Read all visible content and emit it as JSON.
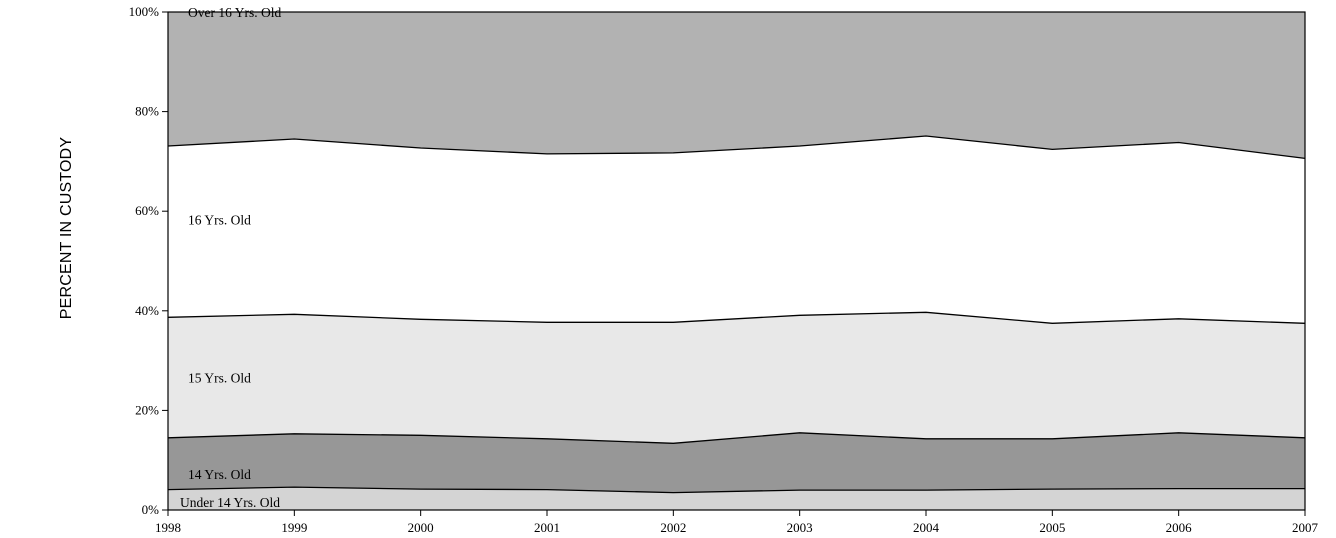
{
  "chart_data": {
    "type": "area",
    "stacked": true,
    "ylabel": "PERCENT IN CUSTODY",
    "xlabel": "",
    "x": [
      "1998",
      "1999",
      "2000",
      "2001",
      "2002",
      "2003",
      "2004",
      "2005",
      "2006",
      "2007"
    ],
    "yticks": [
      "0%",
      "20%",
      "40%",
      "60%",
      "80%",
      "100%"
    ],
    "ylim": [
      0,
      100
    ],
    "series": [
      {
        "name": "Under 14 Yrs. Old",
        "color": "#d4d4d4",
        "values": [
          4.1,
          4.6,
          4.2,
          4.1,
          3.5,
          4.0,
          4.0,
          4.2,
          4.3,
          4.3
        ]
      },
      {
        "name": "14 Yrs. Old",
        "color": "#979797",
        "values": [
          10.4,
          10.7,
          10.8,
          10.2,
          9.9,
          11.5,
          10.3,
          10.1,
          11.2,
          10.2
        ]
      },
      {
        "name": "15 Yrs. Old",
        "color": "#e8e8e8",
        "values": [
          24.2,
          24.0,
          23.3,
          23.4,
          24.3,
          23.6,
          25.4,
          23.2,
          22.9,
          23.0
        ]
      },
      {
        "name": "16 Yrs. Old",
        "color": "#ffffff",
        "values": [
          34.4,
          35.2,
          34.4,
          33.8,
          34.0,
          34.0,
          35.4,
          34.9,
          35.4,
          33.1
        ]
      },
      {
        "name": "Over 16 Yrs. Old",
        "color": "#b2b2b2",
        "values": [
          26.9,
          25.5,
          27.3,
          28.5,
          28.3,
          26.9,
          24.9,
          27.6,
          26.2,
          29.4
        ]
      }
    ],
    "grid": false,
    "legend": "inline labels"
  }
}
